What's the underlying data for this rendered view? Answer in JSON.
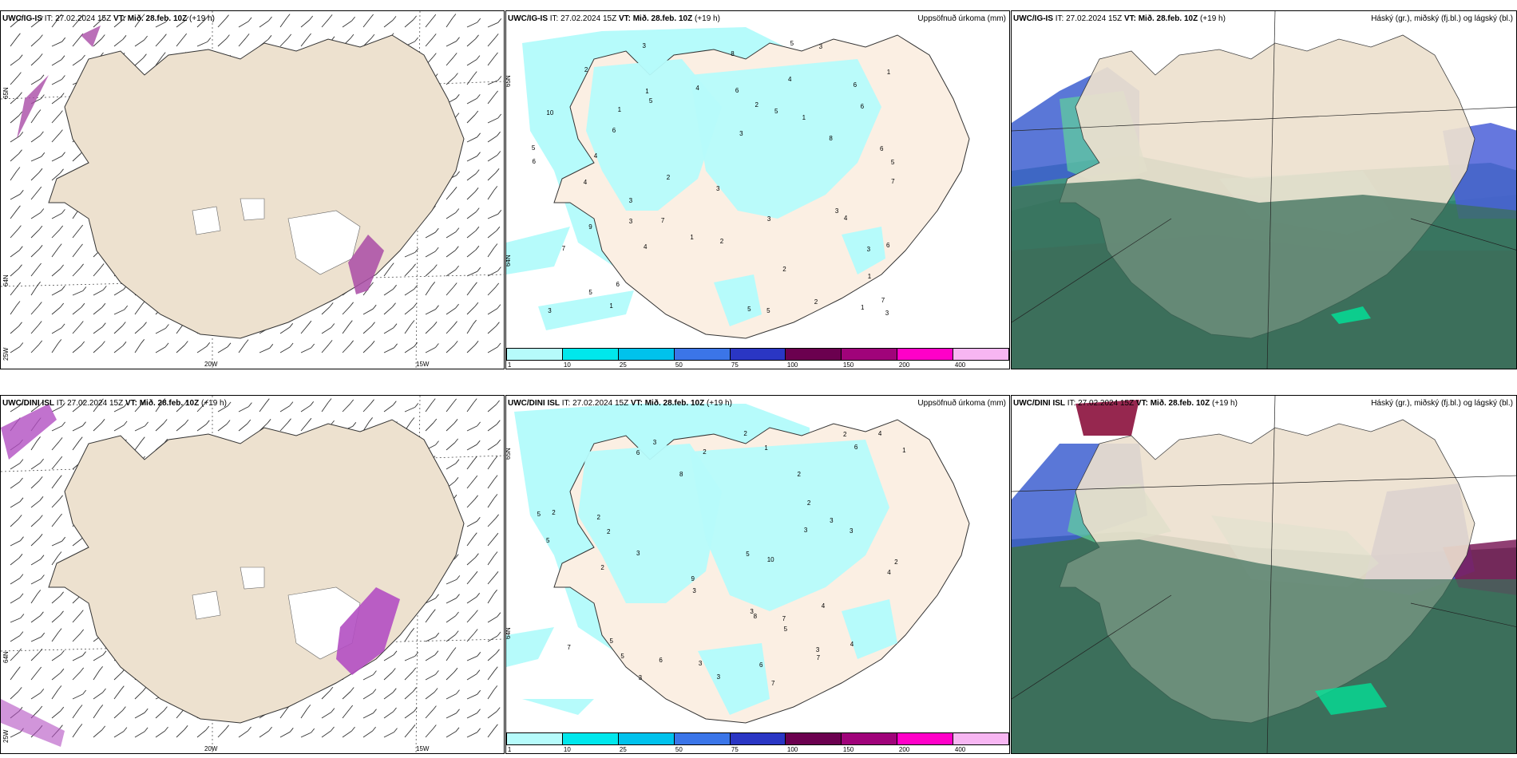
{
  "rows": [
    {
      "model": "UWC/IG-IS",
      "it": " IT: 27.02.2024 15Z ",
      "vt_label": "VT:",
      "vt": " Mið. 28.feb. 10Z",
      "lead": " (+19 h)"
    },
    {
      "model": "UWC/DINI ISL",
      "it": " IT: 27.02.2024 15Z ",
      "vt_label": "VT:",
      "vt": " Mið. 28.feb. 10Z",
      "lead": " (+19 h)"
    }
  ],
  "panel_titles": {
    "precip": "Uppsöfnuð úrkoma (mm)",
    "cloud": "Háský (gr.), miðský (fj.bl.) og lágský (bl.)"
  },
  "axis_labels": {
    "lon_20w": "20W",
    "lon_15w": "15W",
    "lat_65n": "65N",
    "lat_64n": "64N",
    "lat_25w": "25W"
  },
  "colorbar": {
    "ticks": [
      "1",
      "10",
      "25",
      "50",
      "75",
      "100",
      "150",
      "200",
      "400"
    ],
    "colors": [
      "#b6fbfb",
      "#00e7ec",
      "#00c2ec",
      "#3b75e8",
      "#2a36c4",
      "#6b004f",
      "#a0037a",
      "#ff00c8",
      "#f7b6f2"
    ]
  },
  "precip_values_top": [
    "5",
    "6",
    "5",
    "5",
    "2",
    "6",
    "7",
    "5",
    "3",
    "6",
    "6",
    "4",
    "8",
    "4",
    "7",
    "3",
    "3",
    "5",
    "3",
    "4",
    "7",
    "6",
    "5",
    "9",
    "3",
    "3",
    "3",
    "2",
    "5",
    "1",
    "1",
    "3",
    "4",
    "8",
    "4",
    "6",
    "7",
    "3",
    "6",
    "3",
    "5",
    "10",
    "1",
    "2",
    "1",
    "2",
    "2",
    "1",
    "1",
    "6",
    "1",
    "1",
    "2",
    "4",
    "3"
  ],
  "precip_values_bottom": [
    "7",
    "6",
    "5",
    "2",
    "3",
    "6",
    "4",
    "3",
    "3",
    "5",
    "7",
    "5",
    "9",
    "3",
    "3",
    "2",
    "5",
    "6",
    "4",
    "3",
    "3",
    "8",
    "3",
    "7",
    "10",
    "2",
    "2",
    "2",
    "3",
    "8",
    "5",
    "4",
    "2",
    "6",
    "3",
    "3",
    "2",
    "2",
    "2",
    "7",
    "2",
    "5",
    "1",
    "4",
    "1"
  ]
}
